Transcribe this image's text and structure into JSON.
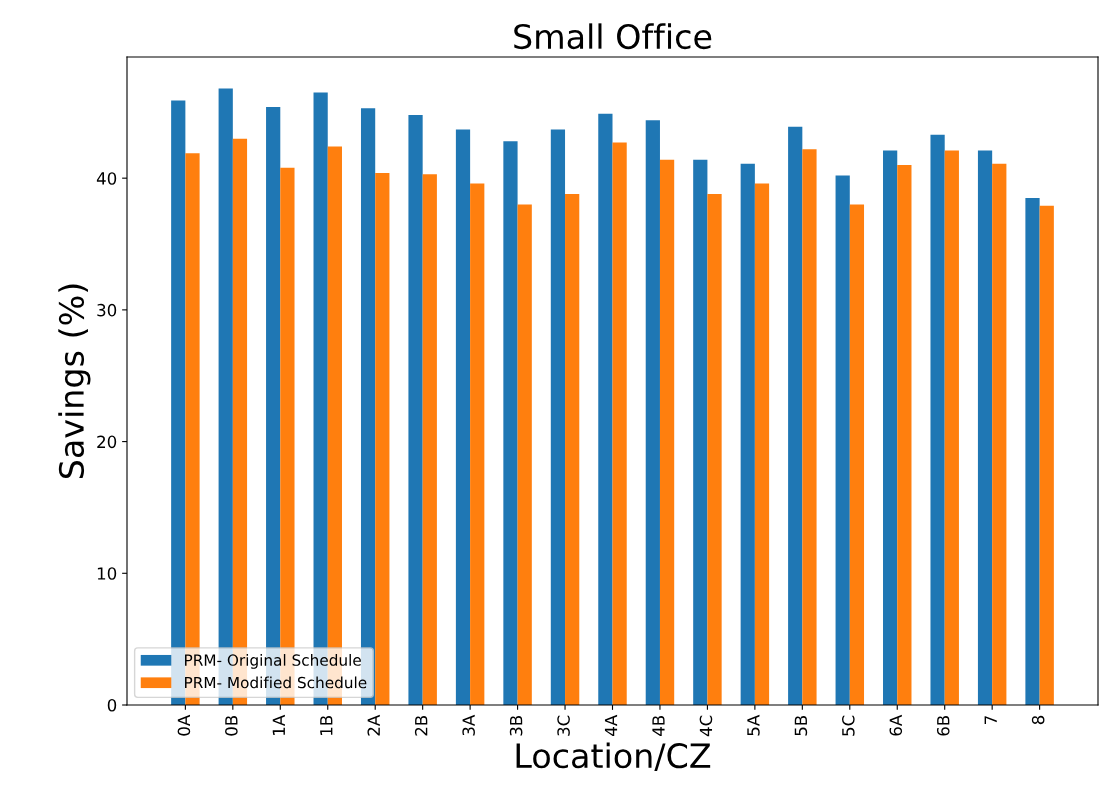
{
  "chart_data": {
    "type": "bar",
    "title": "Small Office",
    "xlabel": "Location/CZ",
    "ylabel": "Savings (%)",
    "categories": [
      "0A",
      "0B",
      "1A",
      "1B",
      "2A",
      "2B",
      "3A",
      "3B",
      "3C",
      "4A",
      "4B",
      "4C",
      "5A",
      "5B",
      "5C",
      "6A",
      "6B",
      "7",
      "8"
    ],
    "series": [
      {
        "name": "PRM- Original Schedule",
        "color": "#1f77b4",
        "values": [
          45.9,
          46.8,
          45.4,
          46.5,
          45.3,
          44.8,
          43.7,
          42.8,
          43.7,
          44.9,
          44.4,
          41.4,
          41.1,
          43.9,
          40.2,
          42.1,
          43.3,
          42.1,
          38.5
        ]
      },
      {
        "name": "PRM- Modified Schedule",
        "color": "#ff7f0e",
        "values": [
          41.9,
          43.0,
          40.8,
          42.4,
          40.4,
          40.3,
          39.6,
          38.0,
          38.8,
          42.7,
          41.4,
          38.8,
          39.6,
          42.2,
          38.0,
          41.0,
          42.1,
          41.1,
          37.9
        ]
      }
    ],
    "ylim": [
      0,
      49.2
    ],
    "yticks": [
      0,
      10,
      20,
      30,
      40
    ],
    "grid": false,
    "legend": "bottom left"
  }
}
